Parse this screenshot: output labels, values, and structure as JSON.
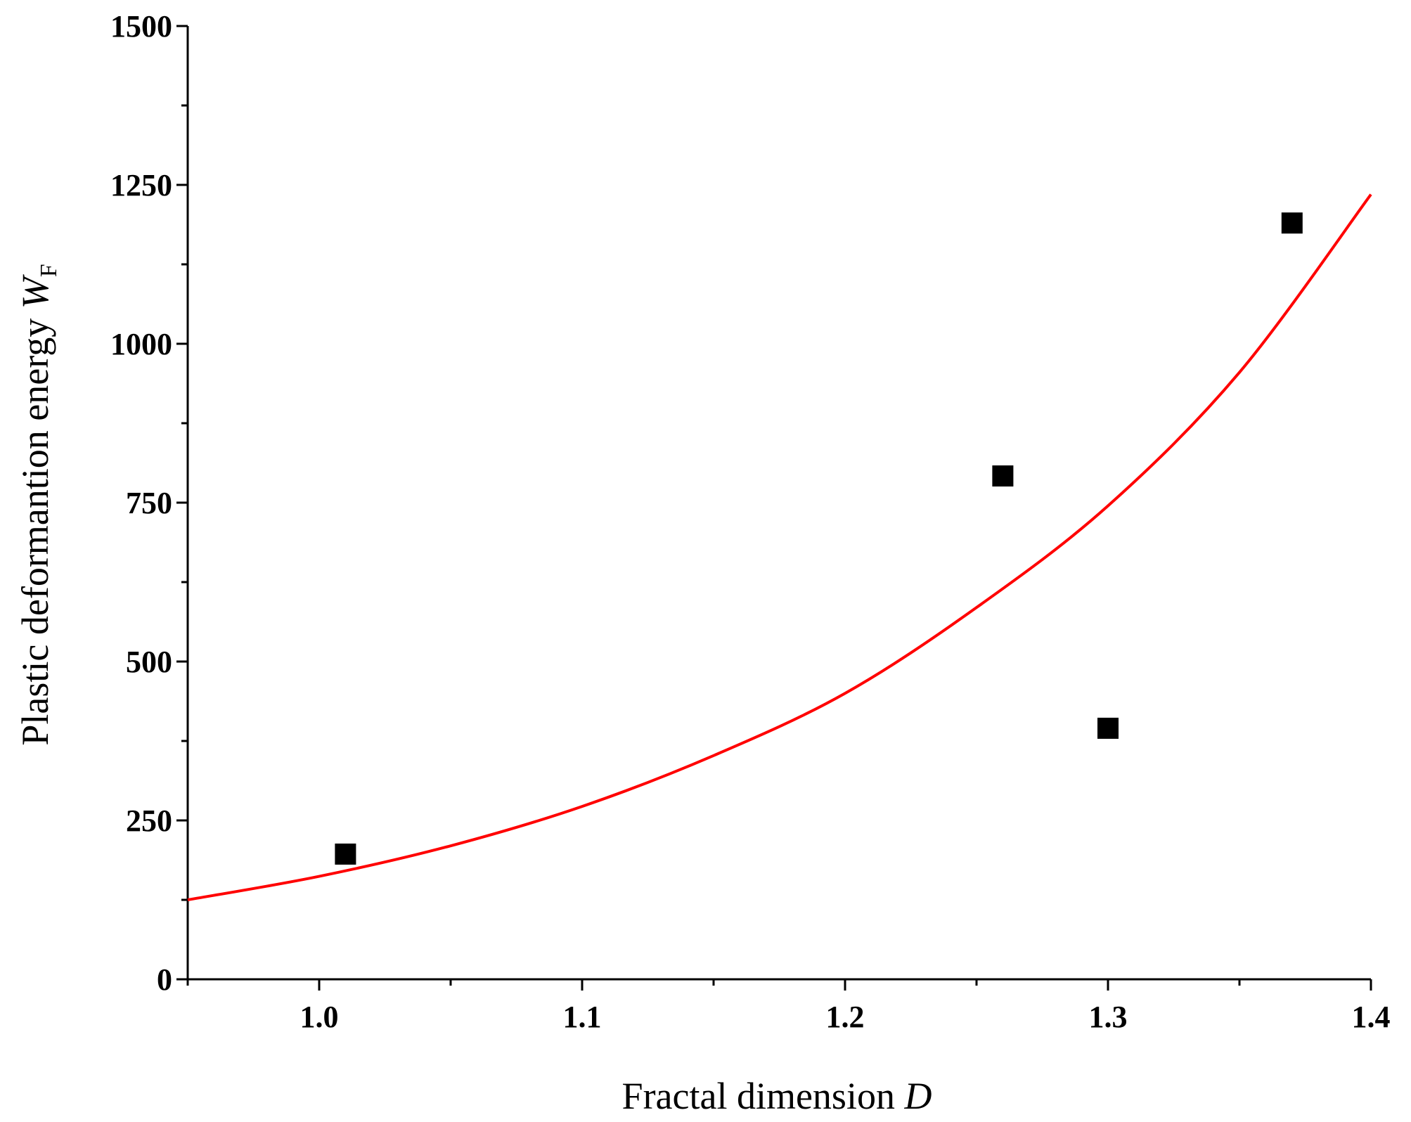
{
  "chart_data": {
    "type": "scatter",
    "title": "",
    "xlabel": "Fractal dimension",
    "xlabel_var": "D",
    "ylabel": "Plastic deformantion energy",
    "ylabel_var": "W",
    "ylabel_sub": "F",
    "xlim": [
      0.95,
      1.4
    ],
    "ylim": [
      0,
      1500
    ],
    "xticks": [
      1.0,
      1.1,
      1.2,
      1.3,
      1.4
    ],
    "xtick_labels": [
      "1.0",
      "1.1",
      "1.2",
      "1.3",
      "1.4"
    ],
    "xminor_ticks": [
      0.95,
      1.05,
      1.15,
      1.25,
      1.35
    ],
    "yticks": [
      0,
      250,
      500,
      750,
      1000,
      1250,
      1500
    ],
    "ytick_labels": [
      "0",
      "250",
      "500",
      "750",
      "1000",
      "1250",
      "1500"
    ],
    "yminor_step": 125,
    "grid": false,
    "series": [
      {
        "kind": "points",
        "marker": "square",
        "color": "#000000",
        "points": [
          {
            "x": 1.01,
            "y": 197
          },
          {
            "x": 1.26,
            "y": 792
          },
          {
            "x": 1.3,
            "y": 395
          },
          {
            "x": 1.37,
            "y": 1190
          }
        ]
      },
      {
        "kind": "fit-curve",
        "color": "#ff0000",
        "points": [
          {
            "x": 0.95,
            "y": 125
          },
          {
            "x": 1.0,
            "y": 162
          },
          {
            "x": 1.05,
            "y": 210
          },
          {
            "x": 1.1,
            "y": 272
          },
          {
            "x": 1.15,
            "y": 352
          },
          {
            "x": 1.2,
            "y": 450
          },
          {
            "x": 1.25,
            "y": 585
          },
          {
            "x": 1.3,
            "y": 745
          },
          {
            "x": 1.35,
            "y": 955
          },
          {
            "x": 1.4,
            "y": 1235
          }
        ]
      }
    ]
  }
}
